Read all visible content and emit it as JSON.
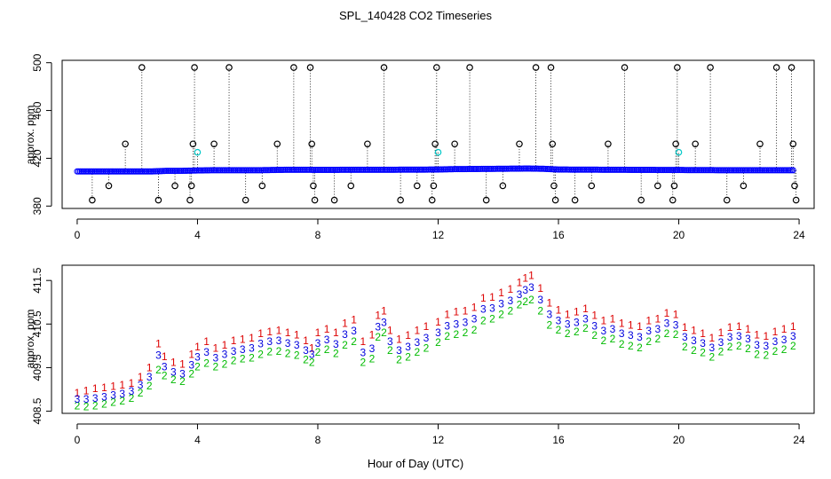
{
  "figure": {
    "title": "SPL_140428  CO2 Timeseries",
    "xlabel": "Hour of Day (UTC)"
  },
  "chart_data": [
    {
      "type": "scatter",
      "title": "SPL_140428  CO2 Timeseries",
      "xlabel": "",
      "ylabel": "approx. ppm",
      "xlim": [
        -0.5,
        24.5
      ],
      "ylim": [
        378,
        502
      ],
      "xticks": [
        0,
        4,
        8,
        12,
        16,
        20,
        24
      ],
      "yticks": [
        380,
        420,
        460,
        500
      ],
      "baseline_marker_color": "#0000ff",
      "vertical_line_style": "dotted",
      "baseline": {
        "x": [
          0.0,
          0.5,
          1.0,
          1.5,
          2.0,
          2.5,
          3.0,
          3.5,
          4.0,
          4.5,
          5.0,
          5.5,
          6.0,
          6.5,
          7.0,
          7.5,
          8.0,
          8.5,
          9.0,
          9.5,
          10.0,
          10.5,
          11.0,
          11.5,
          12.0,
          12.5,
          13.0,
          13.5,
          14.0,
          14.5,
          15.0,
          15.5,
          16.0,
          16.5,
          17.0,
          17.5,
          18.0,
          18.5,
          19.0,
          19.5,
          20.0,
          20.5,
          21.0,
          21.5,
          22.0,
          22.5,
          23.0,
          23.5,
          23.8
        ],
        "y": [
          409,
          409,
          409,
          409,
          409,
          409,
          409.5,
          409.5,
          409.8,
          410,
          410,
          410,
          410,
          410.2,
          410.4,
          410.4,
          410.3,
          410.3,
          410.4,
          410.4,
          410.4,
          410.4,
          410.5,
          410.5,
          410.6,
          410.9,
          411.0,
          411.1,
          411.2,
          411.3,
          411.4,
          411.2,
          410.6,
          410.5,
          410.5,
          410.4,
          410.4,
          410.3,
          410.3,
          410.2,
          410.2,
          410.1,
          410.1,
          410.0,
          410.0,
          410.0,
          410.0,
          410.0,
          410.0
        ]
      },
      "outliers": [
        {
          "x": 0.5,
          "y": 385,
          "color": "#000000"
        },
        {
          "x": 1.05,
          "y": 397,
          "color": "#000000"
        },
        {
          "x": 1.6,
          "y": 432,
          "color": "#000000"
        },
        {
          "x": 2.15,
          "y": 496,
          "color": "#000000"
        },
        {
          "x": 2.7,
          "y": 385,
          "color": "#000000"
        },
        {
          "x": 3.25,
          "y": 397,
          "color": "#000000"
        },
        {
          "x": 3.75,
          "y": 385,
          "color": "#000000"
        },
        {
          "x": 3.8,
          "y": 397,
          "color": "#000000"
        },
        {
          "x": 3.85,
          "y": 432,
          "color": "#000000"
        },
        {
          "x": 3.9,
          "y": 496,
          "color": "#000000"
        },
        {
          "x": 4.0,
          "y": 425,
          "color": "#00c8c8"
        },
        {
          "x": 4.55,
          "y": 432,
          "color": "#000000"
        },
        {
          "x": 5.05,
          "y": 496,
          "color": "#000000"
        },
        {
          "x": 5.6,
          "y": 385,
          "color": "#000000"
        },
        {
          "x": 6.15,
          "y": 397,
          "color": "#000000"
        },
        {
          "x": 6.65,
          "y": 432,
          "color": "#000000"
        },
        {
          "x": 7.2,
          "y": 496,
          "color": "#000000"
        },
        {
          "x": 7.75,
          "y": 496,
          "color": "#000000"
        },
        {
          "x": 7.8,
          "y": 432,
          "color": "#000000"
        },
        {
          "x": 7.85,
          "y": 397,
          "color": "#000000"
        },
        {
          "x": 7.9,
          "y": 385,
          "color": "#000000"
        },
        {
          "x": 8.55,
          "y": 385,
          "color": "#000000"
        },
        {
          "x": 9.1,
          "y": 397,
          "color": "#000000"
        },
        {
          "x": 9.65,
          "y": 432,
          "color": "#000000"
        },
        {
          "x": 10.2,
          "y": 496,
          "color": "#000000"
        },
        {
          "x": 10.75,
          "y": 385,
          "color": "#000000"
        },
        {
          "x": 11.3,
          "y": 397,
          "color": "#000000"
        },
        {
          "x": 11.8,
          "y": 385,
          "color": "#000000"
        },
        {
          "x": 11.85,
          "y": 397,
          "color": "#000000"
        },
        {
          "x": 11.9,
          "y": 432,
          "color": "#000000"
        },
        {
          "x": 11.95,
          "y": 496,
          "color": "#000000"
        },
        {
          "x": 12.0,
          "y": 425,
          "color": "#00c8c8"
        },
        {
          "x": 12.55,
          "y": 432,
          "color": "#000000"
        },
        {
          "x": 13.05,
          "y": 496,
          "color": "#000000"
        },
        {
          "x": 13.6,
          "y": 385,
          "color": "#000000"
        },
        {
          "x": 14.15,
          "y": 397,
          "color": "#000000"
        },
        {
          "x": 14.7,
          "y": 432,
          "color": "#000000"
        },
        {
          "x": 15.25,
          "y": 496,
          "color": "#000000"
        },
        {
          "x": 15.75,
          "y": 496,
          "color": "#000000"
        },
        {
          "x": 15.8,
          "y": 432,
          "color": "#000000"
        },
        {
          "x": 15.85,
          "y": 397,
          "color": "#000000"
        },
        {
          "x": 15.9,
          "y": 385,
          "color": "#000000"
        },
        {
          "x": 16.55,
          "y": 385,
          "color": "#000000"
        },
        {
          "x": 17.1,
          "y": 397,
          "color": "#000000"
        },
        {
          "x": 17.65,
          "y": 432,
          "color": "#000000"
        },
        {
          "x": 18.2,
          "y": 496,
          "color": "#000000"
        },
        {
          "x": 18.75,
          "y": 385,
          "color": "#000000"
        },
        {
          "x": 19.3,
          "y": 397,
          "color": "#000000"
        },
        {
          "x": 19.8,
          "y": 385,
          "color": "#000000"
        },
        {
          "x": 19.85,
          "y": 397,
          "color": "#000000"
        },
        {
          "x": 19.9,
          "y": 432,
          "color": "#000000"
        },
        {
          "x": 19.95,
          "y": 496,
          "color": "#000000"
        },
        {
          "x": 20.0,
          "y": 425,
          "color": "#00c8c8"
        },
        {
          "x": 20.55,
          "y": 432,
          "color": "#000000"
        },
        {
          "x": 21.05,
          "y": 496,
          "color": "#000000"
        },
        {
          "x": 21.6,
          "y": 385,
          "color": "#000000"
        },
        {
          "x": 22.15,
          "y": 397,
          "color": "#000000"
        },
        {
          "x": 22.7,
          "y": 432,
          "color": "#000000"
        },
        {
          "x": 23.25,
          "y": 496,
          "color": "#000000"
        },
        {
          "x": 23.75,
          "y": 496,
          "color": "#000000"
        },
        {
          "x": 23.8,
          "y": 432,
          "color": "#000000"
        },
        {
          "x": 23.85,
          "y": 397,
          "color": "#000000"
        },
        {
          "x": 23.9,
          "y": 385,
          "color": "#000000"
        }
      ]
    },
    {
      "type": "scatter",
      "xlabel": "Hour of Day (UTC)",
      "ylabel": "approx. ppm",
      "xlim": [
        -0.5,
        24.5
      ],
      "ylim": [
        408.45,
        411.85
      ],
      "xticks": [
        0,
        4,
        8,
        12,
        16,
        20,
        24
      ],
      "yticks": [
        408.5,
        409.5,
        410.5,
        411.5
      ],
      "x": [
        0.0,
        0.3,
        0.6,
        0.9,
        1.2,
        1.5,
        1.8,
        2.1,
        2.4,
        2.7,
        2.9,
        3.2,
        3.5,
        3.8,
        4.0,
        4.3,
        4.6,
        4.9,
        5.2,
        5.5,
        5.8,
        6.1,
        6.4,
        6.7,
        7.0,
        7.3,
        7.6,
        7.8,
        8.0,
        8.3,
        8.6,
        8.9,
        9.2,
        9.5,
        9.8,
        10.0,
        10.2,
        10.4,
        10.7,
        11.0,
        11.3,
        11.6,
        12.0,
        12.3,
        12.6,
        12.9,
        13.2,
        13.5,
        13.8,
        14.1,
        14.4,
        14.7,
        14.9,
        15.1,
        15.4,
        15.7,
        16.0,
        16.3,
        16.6,
        16.9,
        17.2,
        17.5,
        17.8,
        18.1,
        18.4,
        18.7,
        19.0,
        19.3,
        19.6,
        19.9,
        20.2,
        20.5,
        20.8,
        21.1,
        21.4,
        21.7,
        22.0,
        22.3,
        22.6,
        22.9,
        23.2,
        23.5,
        23.8
      ],
      "series": [
        {
          "name": "1",
          "color": "#dd0000",
          "values": [
            408.92,
            408.97,
            409.02,
            409.04,
            409.07,
            409.1,
            409.14,
            409.28,
            409.5,
            410.05,
            409.75,
            409.62,
            409.58,
            409.8,
            409.98,
            410.1,
            409.95,
            410.02,
            410.12,
            410.15,
            410.18,
            410.28,
            410.32,
            410.35,
            410.3,
            410.25,
            410.12,
            409.95,
            410.3,
            410.38,
            410.3,
            410.52,
            410.6,
            410.1,
            410.25,
            410.7,
            410.8,
            410.35,
            410.15,
            410.24,
            410.35,
            410.45,
            410.55,
            410.72,
            410.78,
            410.8,
            410.88,
            411.1,
            411.12,
            411.22,
            411.3,
            411.45,
            411.55,
            411.62,
            411.32,
            410.98,
            410.82,
            410.72,
            410.78,
            410.85,
            410.7,
            410.58,
            410.62,
            410.52,
            410.48,
            410.45,
            410.58,
            410.62,
            410.75,
            410.72,
            410.42,
            410.35,
            410.28,
            410.18,
            410.3,
            410.42,
            410.45,
            410.38,
            410.25,
            410.22,
            410.32,
            410.38,
            410.45
          ]
        },
        {
          "name": "2",
          "color": "#00bb00",
          "values": [
            408.62,
            408.6,
            408.62,
            408.66,
            408.7,
            408.74,
            408.8,
            408.92,
            409.08,
            409.45,
            409.32,
            409.22,
            409.18,
            409.36,
            409.52,
            409.6,
            409.52,
            409.58,
            409.66,
            409.7,
            409.72,
            409.8,
            409.86,
            409.88,
            409.82,
            409.78,
            409.68,
            409.62,
            409.85,
            409.92,
            409.82,
            410.02,
            410.1,
            409.62,
            409.7,
            410.2,
            410.3,
            409.9,
            409.68,
            409.74,
            409.85,
            409.95,
            410.08,
            410.22,
            410.26,
            410.3,
            410.36,
            410.58,
            410.62,
            410.72,
            410.8,
            410.94,
            411.02,
            411.06,
            410.8,
            410.48,
            410.36,
            410.28,
            410.32,
            410.4,
            410.24,
            410.12,
            410.16,
            410.04,
            410.0,
            409.96,
            410.1,
            410.16,
            410.28,
            410.26,
            409.98,
            409.9,
            409.84,
            409.74,
            409.86,
            409.98,
            410.0,
            409.94,
            409.8,
            409.78,
            409.88,
            409.92,
            410.0
          ]
        },
        {
          "name": "3",
          "color": "#0000dd",
          "values": [
            408.78,
            408.78,
            408.8,
            408.83,
            408.87,
            408.9,
            408.96,
            409.1,
            409.28,
            409.78,
            409.52,
            409.4,
            409.36,
            409.56,
            409.74,
            409.85,
            409.72,
            409.8,
            409.88,
            409.92,
            409.95,
            410.05,
            410.1,
            410.12,
            410.06,
            410.02,
            409.9,
            409.8,
            410.06,
            410.14,
            410.04,
            410.26,
            410.34,
            409.84,
            409.94,
            410.44,
            410.54,
            410.1,
            409.9,
            409.98,
            410.08,
            410.18,
            410.3,
            410.46,
            410.5,
            410.54,
            410.62,
            410.84,
            410.86,
            410.96,
            411.04,
            411.18,
            411.28,
            411.34,
            411.06,
            410.72,
            410.58,
            410.5,
            410.54,
            410.62,
            410.46,
            410.34,
            410.38,
            410.28,
            410.24,
            410.2,
            410.34,
            410.38,
            410.52,
            410.48,
            410.2,
            410.12,
            410.06,
            409.96,
            410.08,
            410.2,
            410.22,
            410.16,
            410.02,
            410.0,
            410.1,
            410.14,
            410.22
          ]
        }
      ]
    }
  ]
}
